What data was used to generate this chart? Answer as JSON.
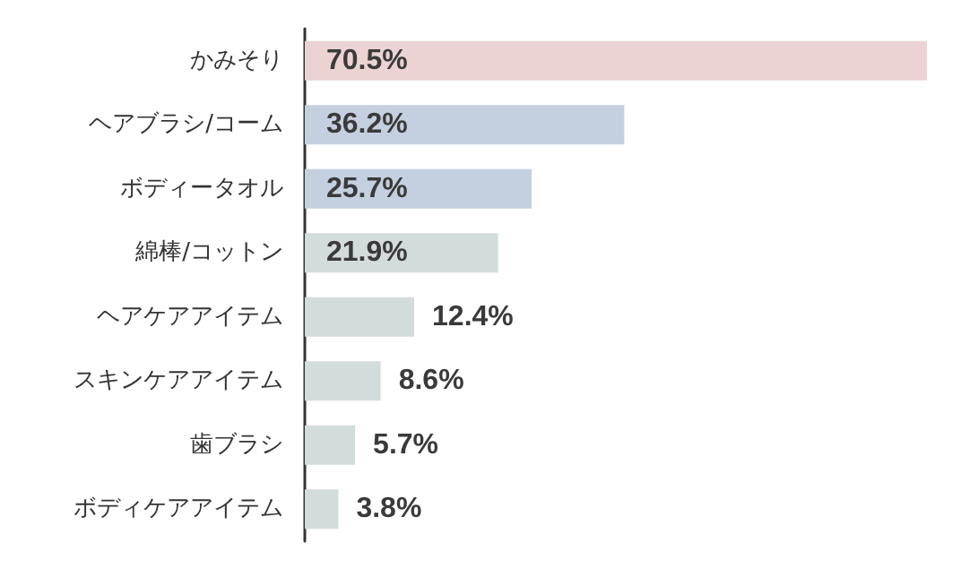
{
  "chart_data": {
    "type": "bar",
    "orientation": "horizontal",
    "categories": [
      "かみそり",
      "ヘアブラシ/コーム",
      "ボディータオル",
      "綿棒/コットン",
      "ヘアケアアイテム",
      "スキンケアアイテム",
      "歯ブラシ",
      "ボディケアアイテム"
    ],
    "values": [
      70.5,
      36.2,
      25.7,
      21.9,
      12.4,
      8.6,
      5.7,
      3.8
    ],
    "colors": [
      "#ecd3d3",
      "#c4d0e0",
      "#c4d0e0",
      "#d3dcdc",
      "#d3dcdc",
      "#d3dcdc",
      "#d3dcdc",
      "#d3dcdc"
    ],
    "value_labels": [
      "70.5%",
      "36.2%",
      "25.7%",
      "21.9%",
      "12.4%",
      "8.6%",
      "5.7%",
      "3.8%"
    ]
  }
}
